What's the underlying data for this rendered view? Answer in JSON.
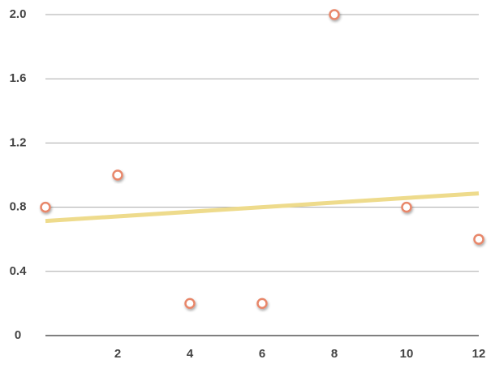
{
  "chart_data": {
    "type": "scatter",
    "series": [
      {
        "color": "#e8876a",
        "x": [
          0,
          2,
          4,
          6,
          8,
          10,
          12
        ],
        "values": [
          0.8,
          1.0,
          0.2,
          0.2,
          2.0,
          0.8,
          0.6
        ]
      }
    ],
    "trendline": {
      "color": "#eedb8c",
      "x": [
        0,
        12
      ],
      "values": [
        0.714,
        0.886
      ]
    },
    "xlim": [
      0,
      12
    ],
    "xticks": [
      2,
      4,
      6,
      8,
      10,
      12
    ],
    "ylim": [
      0,
      2
    ],
    "yticks": [
      0,
      0.4,
      0.8,
      1.2,
      1.6,
      {
        "value": 2,
        "label": "2.0"
      }
    ],
    "grid": true
  }
}
